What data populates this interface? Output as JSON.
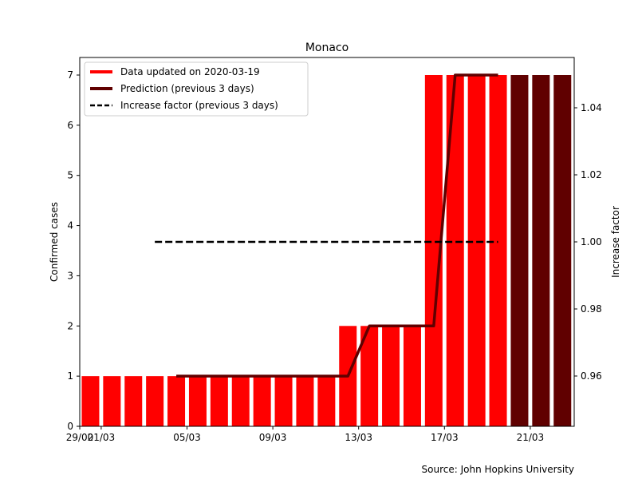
{
  "chart_data": {
    "type": "bar",
    "title": "Monaco",
    "ylabel_left": "Confirmed cases",
    "ylabel_right": "Increase factor",
    "source": "Source: John Hopkins University",
    "x_tick_labels": [
      "29/02",
      "01/03",
      "05/03",
      "09/03",
      "13/03",
      "17/03",
      "21/03"
    ],
    "x_tick_dates": [
      "2020-02-29",
      "2020-03-01",
      "2020-03-05",
      "2020-03-09",
      "2020-03-13",
      "2020-03-17",
      "2020-03-21"
    ],
    "ylim_left": [
      0,
      7.35
    ],
    "yticks_left": [
      0,
      1,
      2,
      3,
      4,
      5,
      6,
      7
    ],
    "ylim_right": [
      0.945,
      1.055
    ],
    "yticks_right": [
      0.96,
      0.98,
      1.0,
      1.02,
      1.04
    ],
    "yticks_right_labels": [
      "0.96",
      "0.98",
      "1.00",
      "1.02",
      "1.04"
    ],
    "legend": {
      "placement": "upper-left",
      "entries": [
        {
          "label": "Data updated on 2020-03-19",
          "style": "solid-thick",
          "color": "#ff0000"
        },
        {
          "label": "Prediction (previous 3 days)",
          "style": "solid-thick",
          "color": "#600000"
        },
        {
          "label": "Increase factor (previous 3 days)",
          "style": "dashed",
          "color": "#000000"
        }
      ]
    },
    "series": [
      {
        "name": "Data updated on 2020-03-19",
        "kind": "bar",
        "color": "#ff0000",
        "dates": [
          "2020-02-29",
          "2020-03-01",
          "2020-03-02",
          "2020-03-03",
          "2020-03-04",
          "2020-03-05",
          "2020-03-06",
          "2020-03-07",
          "2020-03-08",
          "2020-03-09",
          "2020-03-10",
          "2020-03-11",
          "2020-03-12",
          "2020-03-13",
          "2020-03-14",
          "2020-03-15",
          "2020-03-16",
          "2020-03-17",
          "2020-03-18",
          "2020-03-19"
        ],
        "values": [
          1,
          1,
          1,
          1,
          1,
          1,
          1,
          1,
          1,
          1,
          1,
          1,
          2,
          2,
          2,
          2,
          7,
          7,
          7,
          7
        ]
      },
      {
        "name": "Prediction (previous 3 days)",
        "kind": "bar",
        "color": "#600000",
        "dates": [
          "2020-03-20",
          "2020-03-21",
          "2020-03-22"
        ],
        "values": [
          7,
          7,
          7
        ]
      },
      {
        "name": "Prediction (previous 3 days)",
        "kind": "line",
        "color": "#600000",
        "dates": [
          "2020-03-04",
          "2020-03-05",
          "2020-03-06",
          "2020-03-07",
          "2020-03-08",
          "2020-03-09",
          "2020-03-10",
          "2020-03-11",
          "2020-03-12",
          "2020-03-13",
          "2020-03-14",
          "2020-03-15",
          "2020-03-16",
          "2020-03-17",
          "2020-03-18",
          "2020-03-19"
        ],
        "values": [
          1,
          1,
          1,
          1,
          1,
          1,
          1,
          1,
          1,
          2,
          2,
          2,
          2,
          7,
          7,
          7
        ]
      },
      {
        "name": "Increase factor (previous 3 days)",
        "kind": "line-dashed",
        "axis": "right",
        "color": "#000000",
        "dates": [
          "2020-03-03",
          "2020-03-19"
        ],
        "values": [
          1.0,
          1.0
        ]
      }
    ]
  }
}
